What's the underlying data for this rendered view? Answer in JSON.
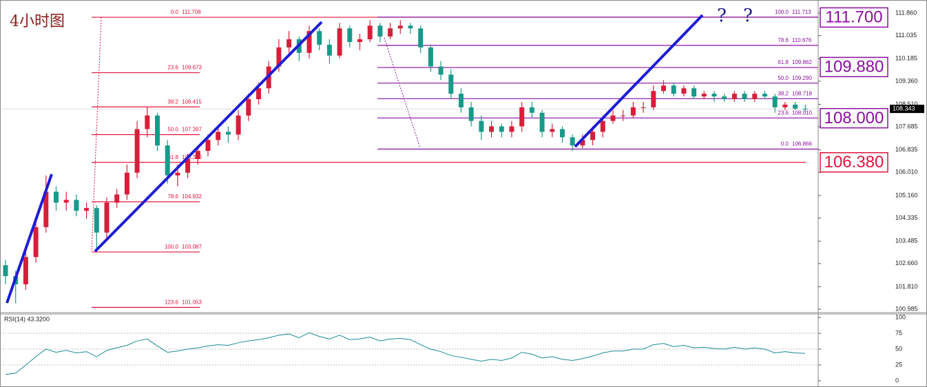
{
  "chart_data": [
    {
      "type": "candlestick",
      "title": "4小时图",
      "up_color": "#d81e3a",
      "down_color": "#19998a",
      "ylim": [
        100.91,
        112.14
      ],
      "yticks": [
        {
          "value": 111.86,
          "label": "111.860"
        },
        111.035,
        110.185,
        {
          "value": 109.36,
          "label": "109.360"
        },
        {
          "value": 108.51,
          "label": "108.510"
        },
        107.685,
        106.835,
        {
          "value": 106.01,
          "label": "106.010"
        },
        {
          "value": 105.16,
          "label": "105.160"
        },
        104.335,
        103.485,
        {
          "value": 102.66,
          "label": "102.660"
        },
        {
          "value": 101.81,
          "label": "101.810"
        },
        100.985
      ],
      "current_price": 108.343,
      "candles": [
        [
          102.6,
          102.8,
          101.9,
          102.2
        ],
        [
          102.2,
          102.4,
          101.2,
          101.9
        ],
        [
          101.9,
          103.1,
          101.7,
          102.9
        ],
        [
          102.9,
          104.3,
          102.7,
          104.0
        ],
        [
          104.0,
          105.9,
          103.8,
          105.3
        ],
        [
          105.3,
          105.5,
          104.6,
          104.9
        ],
        [
          104.9,
          105.3,
          104.6,
          105.0
        ],
        [
          105.0,
          105.2,
          104.4,
          104.6
        ],
        [
          104.6,
          104.9,
          104.3,
          104.7
        ],
        [
          104.7,
          104.8,
          103.1,
          103.8
        ],
        [
          103.8,
          105.1,
          103.6,
          104.9
        ],
        [
          104.9,
          105.4,
          104.7,
          105.2
        ],
        [
          105.2,
          106.3,
          105.0,
          106.0
        ],
        [
          106.0,
          107.9,
          105.8,
          107.6
        ],
        [
          107.6,
          108.4,
          107.3,
          108.1
        ],
        [
          108.1,
          108.2,
          106.8,
          107.0
        ],
        [
          107.0,
          107.2,
          105.6,
          105.9
        ],
        [
          105.9,
          106.3,
          105.5,
          106.0
        ],
        [
          106.0,
          106.7,
          105.8,
          106.5
        ],
        [
          106.5,
          107.0,
          106.3,
          106.8
        ],
        [
          106.8,
          107.4,
          106.6,
          107.2
        ],
        [
          107.2,
          107.7,
          107.0,
          107.5
        ],
        [
          107.5,
          107.7,
          107.1,
          107.4
        ],
        [
          107.4,
          108.3,
          107.2,
          108.1
        ],
        [
          108.1,
          108.9,
          107.9,
          108.7
        ],
        [
          108.7,
          109.3,
          108.5,
          109.1
        ],
        [
          109.1,
          110.1,
          108.9,
          109.9
        ],
        [
          109.9,
          110.9,
          109.7,
          110.6
        ],
        [
          110.6,
          111.2,
          110.4,
          110.9
        ],
        [
          110.9,
          111.0,
          110.1,
          110.4
        ],
        [
          110.4,
          111.4,
          110.2,
          111.2
        ],
        [
          111.2,
          111.3,
          110.5,
          110.7
        ],
        [
          110.7,
          110.9,
          110.0,
          110.3
        ],
        [
          110.3,
          111.5,
          110.2,
          111.3
        ],
        [
          111.3,
          111.4,
          110.6,
          110.8
        ],
        [
          110.8,
          111.1,
          110.5,
          110.9
        ],
        [
          110.9,
          111.6,
          110.8,
          111.4
        ],
        [
          111.4,
          111.5,
          110.8,
          111.0
        ],
        [
          111.0,
          111.5,
          110.9,
          111.3
        ],
        [
          111.3,
          111.6,
          111.1,
          111.4
        ],
        [
          111.4,
          111.5,
          111.1,
          111.3
        ],
        [
          111.3,
          111.4,
          110.4,
          110.6
        ],
        [
          110.6,
          110.7,
          109.7,
          109.9
        ],
        [
          109.9,
          110.1,
          109.4,
          109.6
        ],
        [
          109.6,
          109.8,
          108.7,
          108.9
        ],
        [
          108.9,
          109.1,
          108.2,
          108.4
        ],
        [
          108.4,
          108.6,
          107.7,
          107.9
        ],
        [
          107.9,
          108.1,
          107.2,
          107.5
        ],
        [
          107.5,
          107.9,
          107.3,
          107.7
        ],
        [
          107.7,
          107.8,
          107.3,
          107.5
        ],
        [
          107.5,
          107.9,
          107.3,
          107.7
        ],
        [
          107.7,
          108.6,
          107.5,
          108.4
        ],
        [
          108.4,
          108.6,
          108.0,
          108.2
        ],
        [
          108.2,
          108.3,
          107.3,
          107.5
        ],
        [
          107.5,
          107.8,
          107.3,
          107.6
        ],
        [
          107.6,
          107.7,
          107.1,
          107.3
        ],
        [
          107.3,
          107.4,
          106.8,
          107.0
        ],
        [
          107.0,
          107.4,
          106.9,
          107.2
        ],
        [
          107.2,
          107.7,
          107.0,
          107.5
        ],
        [
          107.5,
          108.1,
          107.3,
          107.9
        ],
        [
          107.9,
          108.3,
          107.8,
          108.1
        ],
        [
          108.1,
          108.3,
          107.9,
          108.1
        ],
        [
          108.1,
          108.6,
          108.0,
          108.4
        ],
        [
          108.4,
          108.6,
          108.2,
          108.4
        ],
        [
          108.4,
          109.2,
          108.3,
          109.0
        ],
        [
          109.0,
          109.4,
          108.9,
          109.2
        ],
        [
          109.2,
          109.3,
          108.8,
          108.9
        ],
        [
          108.9,
          109.2,
          108.8,
          109.1
        ],
        [
          109.1,
          109.2,
          108.7,
          108.8
        ],
        [
          108.8,
          109.0,
          108.7,
          108.9
        ],
        [
          108.9,
          109.0,
          108.6,
          108.8
        ],
        [
          108.8,
          108.9,
          108.6,
          108.7
        ],
        [
          108.7,
          109.0,
          108.6,
          108.9
        ],
        [
          108.9,
          109.0,
          108.6,
          108.7
        ],
        [
          108.7,
          109.0,
          108.6,
          108.9
        ],
        [
          108.9,
          109.0,
          108.7,
          108.8
        ],
        [
          108.8,
          108.9,
          108.2,
          108.4
        ],
        [
          108.4,
          108.6,
          108.3,
          108.5
        ],
        [
          108.5,
          108.6,
          108.3,
          108.35
        ],
        [
          108.35,
          108.5,
          108.2,
          108.343
        ]
      ],
      "fib_sets": [
        {
          "color": "#e0143c",
          "levels": [
            {
              "ratio": "0.0",
              "price": 111.708
            },
            {
              "ratio": "23.6",
              "price": 109.673
            },
            {
              "ratio": "38.2",
              "price": 108.415
            },
            {
              "ratio": "50.0",
              "price": 107.397
            },
            {
              "ratio": "61.8",
              "price": {
                "value": 106.38,
                "label": "106.380"
              }
            },
            {
              "ratio": "78.6",
              "price": 104.932
            },
            {
              "ratio": "100.0",
              "price": 103.087
            },
            {
              "ratio": "123.6",
              "price": 101.053
            }
          ]
        },
        {
          "color": "#8a0fa0",
          "levels": [
            {
              "ratio": "100.0",
              "price": 111.713
            },
            {
              "ratio": "78.6",
              "price": 110.676
            },
            {
              "ratio": "61.8",
              "price": 109.862
            },
            {
              "ratio": "50.0",
              "price": {
                "value": 109.29,
                "label": "109.290"
              }
            },
            {
              "ratio": "38.2",
              "price": 108.718
            },
            {
              "ratio": "23.6",
              "price": {
                "value": 108.01,
                "label": "108.010"
              }
            },
            {
              "ratio": "0.0",
              "price": 106.866
            }
          ]
        }
      ],
      "key_levels": [
        {
          "value": 111.7,
          "label": "111.700",
          "color": "#8a0fa0"
        },
        {
          "value": 109.88,
          "label": "109.880",
          "color": "#8a0fa0"
        },
        {
          "value": 108,
          "label": "108.000",
          "color": "#8a0fa0"
        },
        {
          "value": 106.38,
          "label": "106.380",
          "color": "#e0143c"
        }
      ],
      "annotations": [
        "?",
        "?"
      ]
    },
    {
      "type": "line",
      "label": "RSI(14) 43.3200",
      "color": "#1a8a96",
      "ylim": [
        -5.5,
        105.5
      ],
      "yticks": [
        0,
        25,
        50,
        75,
        100
      ],
      "grid": true,
      "values": [
        10,
        12,
        25,
        38,
        50,
        45,
        48,
        44,
        46,
        38,
        48,
        52,
        56,
        63,
        66,
        55,
        45,
        47,
        50,
        52,
        55,
        57,
        56,
        60,
        63,
        65,
        68,
        72,
        74,
        68,
        76,
        70,
        66,
        72,
        65,
        66,
        69,
        63,
        66,
        67,
        65,
        57,
        50,
        46,
        40,
        37,
        34,
        31,
        34,
        32,
        36,
        45,
        42,
        36,
        38,
        34,
        32,
        35,
        39,
        44,
        47,
        47,
        50,
        50,
        57,
        59,
        54,
        56,
        52,
        53,
        51,
        50,
        53,
        50,
        52,
        50,
        44,
        46,
        44,
        43.32
      ]
    }
  ]
}
